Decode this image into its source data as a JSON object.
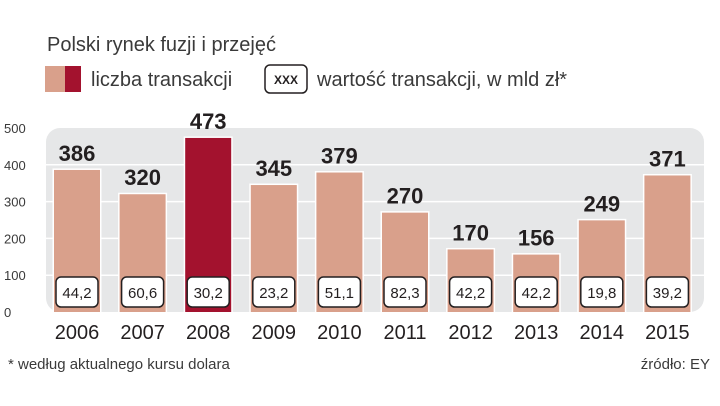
{
  "chart_data": {
    "type": "bar",
    "title": "Polski rynek fuzji i przejęć",
    "legend": [
      {
        "label": "liczba transakcji",
        "swatch": "bar-colors"
      },
      {
        "label": "wartość transakcji, w mld zł*",
        "swatch_text": "XXX"
      }
    ],
    "categories": [
      "2006",
      "2007",
      "2008",
      "2009",
      "2010",
      "2011",
      "2012",
      "2013",
      "2014",
      "2015"
    ],
    "series": [
      {
        "name": "liczba transakcji",
        "values": [
          386,
          320,
          473,
          345,
          379,
          270,
          170,
          156,
          249,
          371
        ]
      },
      {
        "name": "wartość transakcji, w mld zł*",
        "values": [
          "44,2",
          "60,6",
          "30,2",
          "23,2",
          "51,1",
          "82,3",
          "42,2",
          "42,2",
          "19,8",
          "39,2"
        ]
      }
    ],
    "highlight_category": "2008",
    "y_ticks": [
      "0",
      "100",
      "200",
      "300",
      "400",
      "500"
    ],
    "ylim": [
      0,
      500
    ],
    "grid": true,
    "footnote": "* według aktualnego kursu dolara",
    "source": "źródło: EY",
    "colors": {
      "bar": "#d9a08b",
      "bar_highlight": "#a3122e",
      "panel": "#e6e7e8",
      "grid": "#ffffff",
      "text": "#231f20"
    }
  }
}
